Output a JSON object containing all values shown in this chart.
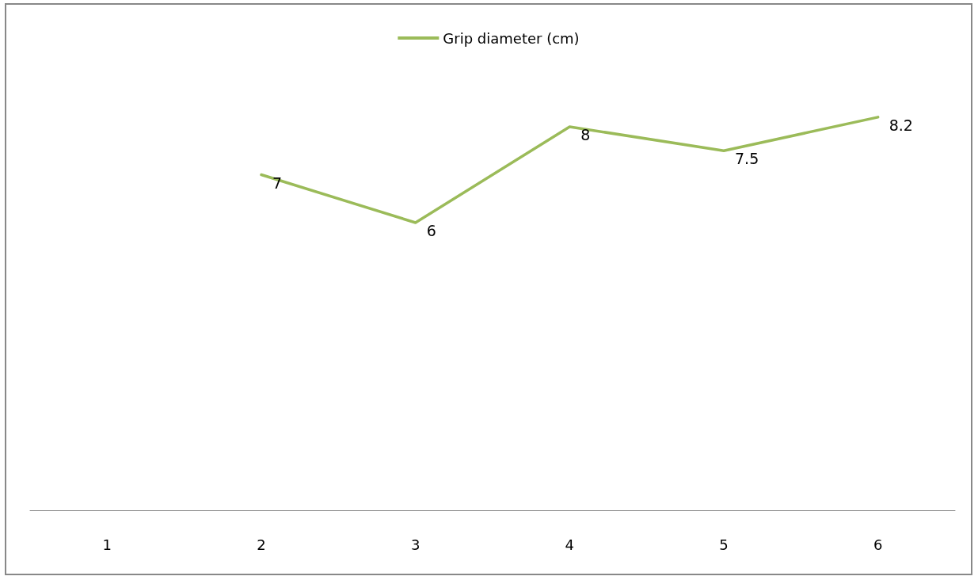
{
  "chart_data": {
    "type": "line",
    "categories": [
      "1",
      "2",
      "3",
      "4",
      "5",
      "6"
    ],
    "series": [
      {
        "name": "Grip diameter (cm)",
        "color": "#9bbb59",
        "values": [
          null,
          7,
          6,
          8,
          7.5,
          8.2
        ]
      }
    ],
    "data_labels": true,
    "legend": "top",
    "grid": false,
    "marker": "none",
    "line_style": "solid",
    "tick_labels": "x"
  }
}
